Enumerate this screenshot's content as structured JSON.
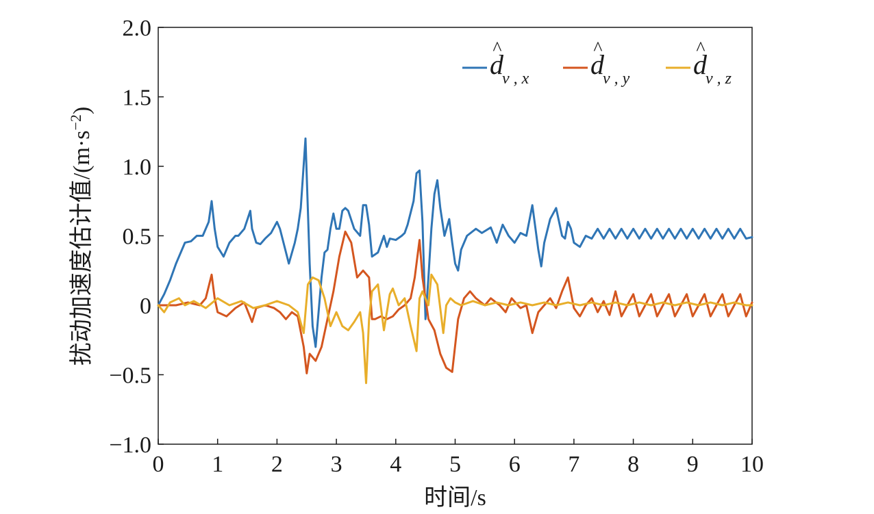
{
  "chart_data": {
    "type": "line",
    "title": "",
    "xlabel": "时间/s",
    "ylabel": "扰动加速度估计值/(m·s⁻²)",
    "ylabel_main": "扰动加速度估计值/(m·s",
    "ylabel_exp": "−2",
    "ylabel_close": ")",
    "xlim": [
      0,
      10
    ],
    "ylim": [
      -1.0,
      2.0
    ],
    "x_ticks": [
      0,
      1,
      2,
      3,
      4,
      5,
      6,
      7,
      8,
      9,
      10
    ],
    "x_tick_labels": [
      "0",
      "1",
      "2",
      "3",
      "4",
      "5",
      "6",
      "7",
      "8",
      "9",
      "10"
    ],
    "y_ticks": [
      -1.0,
      -0.5,
      0,
      0.5,
      1.0,
      1.5,
      2.0
    ],
    "y_tick_labels": [
      "−1.0",
      "−0.5",
      "0",
      "0.5",
      "1.0",
      "1.5",
      "2.0"
    ],
    "grid": false,
    "legend_position": "top-right",
    "series": [
      {
        "name": "d̂_{v,x}",
        "legend_main": "d",
        "legend_sub": "v , x",
        "color": "#2f75b5",
        "x": [
          0,
          0.1,
          0.2,
          0.3,
          0.45,
          0.55,
          0.65,
          0.75,
          0.85,
          0.9,
          0.95,
          1.0,
          1.1,
          1.2,
          1.3,
          1.35,
          1.45,
          1.55,
          1.58,
          1.65,
          1.72,
          1.8,
          1.9,
          2.0,
          2.05,
          2.2,
          2.3,
          2.35,
          2.4,
          2.48,
          2.55,
          2.6,
          2.65,
          2.7,
          2.75,
          2.8,
          2.85,
          2.9,
          2.95,
          3.0,
          3.05,
          3.1,
          3.15,
          3.2,
          3.3,
          3.4,
          3.45,
          3.5,
          3.55,
          3.6,
          3.7,
          3.8,
          3.85,
          3.9,
          4.0,
          4.1,
          4.15,
          4.2,
          4.3,
          4.35,
          4.4,
          4.45,
          4.5,
          4.55,
          4.6,
          4.65,
          4.7,
          4.75,
          4.82,
          4.9,
          4.95,
          5.0,
          5.05,
          5.1,
          5.2,
          5.35,
          5.45,
          5.6,
          5.7,
          5.8,
          5.9,
          6.0,
          6.1,
          6.2,
          6.3,
          6.4,
          6.45,
          6.5,
          6.6,
          6.7,
          6.8,
          6.85,
          6.9,
          6.95,
          7.0,
          7.1,
          7.2,
          7.3,
          7.4,
          7.5,
          7.6,
          7.7,
          7.8,
          7.9,
          8.0,
          8.1,
          8.2,
          8.3,
          8.4,
          8.5,
          8.6,
          8.7,
          8.8,
          8.9,
          9.0,
          9.1,
          9.2,
          9.3,
          9.4,
          9.5,
          9.6,
          9.7,
          9.8,
          9.9,
          10.0
        ],
        "values": [
          0.0,
          0.08,
          0.18,
          0.3,
          0.45,
          0.46,
          0.5,
          0.5,
          0.6,
          0.75,
          0.55,
          0.42,
          0.35,
          0.45,
          0.5,
          0.5,
          0.55,
          0.68,
          0.55,
          0.45,
          0.44,
          0.48,
          0.52,
          0.6,
          0.55,
          0.3,
          0.45,
          0.55,
          0.7,
          1.2,
          0.3,
          -0.15,
          -0.3,
          -0.05,
          0.2,
          0.38,
          0.4,
          0.55,
          0.66,
          0.55,
          0.55,
          0.68,
          0.7,
          0.68,
          0.55,
          0.5,
          0.72,
          0.72,
          0.58,
          0.35,
          0.38,
          0.5,
          0.42,
          0.48,
          0.47,
          0.5,
          0.52,
          0.58,
          0.75,
          0.95,
          0.97,
          0.6,
          -0.1,
          0.2,
          0.55,
          0.8,
          0.9,
          0.7,
          0.5,
          0.62,
          0.45,
          0.3,
          0.25,
          0.4,
          0.5,
          0.55,
          0.52,
          0.56,
          0.45,
          0.58,
          0.5,
          0.45,
          0.52,
          0.5,
          0.72,
          0.4,
          0.28,
          0.45,
          0.62,
          0.7,
          0.5,
          0.48,
          0.6,
          0.55,
          0.45,
          0.42,
          0.5,
          0.48,
          0.55,
          0.48,
          0.55,
          0.48,
          0.55,
          0.48,
          0.55,
          0.48,
          0.55,
          0.48,
          0.55,
          0.48,
          0.55,
          0.48,
          0.55,
          0.48,
          0.55,
          0.48,
          0.55,
          0.48,
          0.55,
          0.48,
          0.55,
          0.48,
          0.55,
          0.48,
          0.49
        ]
      },
      {
        "name": "d̂_{v,y}",
        "legend_main": "d",
        "legend_sub": "v , y",
        "color": "#d4561f",
        "x": [
          0,
          0.3,
          0.5,
          0.7,
          0.8,
          0.9,
          0.95,
          1.0,
          1.15,
          1.3,
          1.45,
          1.58,
          1.65,
          1.8,
          1.95,
          2.05,
          2.15,
          2.25,
          2.35,
          2.45,
          2.5,
          2.55,
          2.65,
          2.75,
          2.85,
          2.95,
          3.05,
          3.15,
          3.25,
          3.35,
          3.45,
          3.55,
          3.6,
          3.65,
          3.75,
          3.85,
          3.95,
          4.05,
          4.15,
          4.25,
          4.32,
          4.4,
          4.45,
          4.55,
          4.65,
          4.75,
          4.85,
          4.95,
          5.05,
          5.15,
          5.25,
          5.35,
          5.5,
          5.6,
          5.75,
          5.85,
          5.95,
          6.1,
          6.2,
          6.3,
          6.4,
          6.5,
          6.6,
          6.7,
          6.8,
          6.9,
          7.0,
          7.1,
          7.2,
          7.3,
          7.4,
          7.5,
          7.6,
          7.7,
          7.8,
          7.9,
          8.0,
          8.1,
          8.2,
          8.3,
          8.4,
          8.5,
          8.6,
          8.7,
          8.8,
          8.9,
          9.0,
          9.1,
          9.2,
          9.3,
          9.4,
          9.5,
          9.6,
          9.7,
          9.8,
          9.9,
          10.0
        ],
        "values": [
          0.0,
          0.0,
          0.02,
          0.0,
          0.05,
          0.22,
          0.05,
          -0.05,
          -0.08,
          -0.02,
          0.02,
          -0.12,
          -0.02,
          0.0,
          -0.02,
          -0.05,
          -0.1,
          -0.05,
          -0.08,
          -0.3,
          -0.49,
          -0.35,
          -0.4,
          -0.3,
          -0.1,
          0.1,
          0.35,
          0.53,
          0.45,
          0.2,
          0.25,
          0.2,
          -0.1,
          -0.1,
          -0.08,
          -0.1,
          -0.08,
          -0.03,
          0.0,
          0.05,
          0.2,
          0.47,
          0.2,
          -0.1,
          -0.18,
          -0.35,
          -0.45,
          -0.48,
          -0.1,
          0.05,
          0.1,
          0.05,
          0.0,
          0.05,
          0.0,
          -0.05,
          0.05,
          -0.02,
          0.0,
          -0.2,
          -0.05,
          0.0,
          0.05,
          -0.02,
          0.1,
          0.2,
          -0.02,
          -0.08,
          0.0,
          0.05,
          -0.05,
          0.03,
          -0.07,
          0.1,
          -0.08,
          0.0,
          0.08,
          -0.08,
          0.0,
          0.08,
          -0.08,
          0.0,
          0.08,
          -0.08,
          0.0,
          0.08,
          -0.08,
          0.0,
          0.08,
          -0.08,
          0.0,
          0.08,
          -0.08,
          0.0,
          0.08,
          -0.08,
          0.02
        ]
      },
      {
        "name": "d̂_{v,z}",
        "legend_main": "d",
        "legend_sub": "v , z",
        "color": "#e8ae2a",
        "x": [
          0,
          0.1,
          0.2,
          0.35,
          0.45,
          0.6,
          0.8,
          1.0,
          1.2,
          1.4,
          1.6,
          1.8,
          2.0,
          2.2,
          2.35,
          2.45,
          2.52,
          2.6,
          2.7,
          2.8,
          2.9,
          3.0,
          3.1,
          3.2,
          3.3,
          3.4,
          3.45,
          3.5,
          3.55,
          3.6,
          3.7,
          3.8,
          3.9,
          3.95,
          4.05,
          4.15,
          4.25,
          4.35,
          4.4,
          4.45,
          4.55,
          4.6,
          4.7,
          4.8,
          4.85,
          4.92,
          5.0,
          5.1,
          5.3,
          5.5,
          5.7,
          5.9,
          6.1,
          6.3,
          6.5,
          6.7,
          6.9,
          7.1,
          7.3,
          7.5,
          7.7,
          7.9,
          8.1,
          8.3,
          8.5,
          8.7,
          8.9,
          9.1,
          9.3,
          9.5,
          9.7,
          9.9,
          10.0
        ],
        "values": [
          0.0,
          -0.05,
          0.02,
          0.05,
          0.0,
          0.03,
          -0.02,
          0.05,
          0.0,
          0.03,
          -0.02,
          0.0,
          0.03,
          0.0,
          -0.05,
          -0.2,
          0.15,
          0.2,
          0.18,
          0.05,
          -0.15,
          -0.05,
          -0.15,
          -0.18,
          -0.12,
          -0.05,
          -0.2,
          -0.56,
          -0.1,
          0.1,
          0.15,
          -0.18,
          0.08,
          0.12,
          0.0,
          0.05,
          -0.15,
          -0.33,
          0.05,
          0.1,
          0.0,
          0.22,
          0.15,
          -0.2,
          0.0,
          0.05,
          0.02,
          0.0,
          0.03,
          0.0,
          0.02,
          0.0,
          0.02,
          0.0,
          0.02,
          0.0,
          0.02,
          0.0,
          0.02,
          0.0,
          0.02,
          0.0,
          0.02,
          0.0,
          0.02,
          0.0,
          0.02,
          0.0,
          0.02,
          0.0,
          0.02,
          0.0,
          0.0
        ]
      }
    ]
  }
}
